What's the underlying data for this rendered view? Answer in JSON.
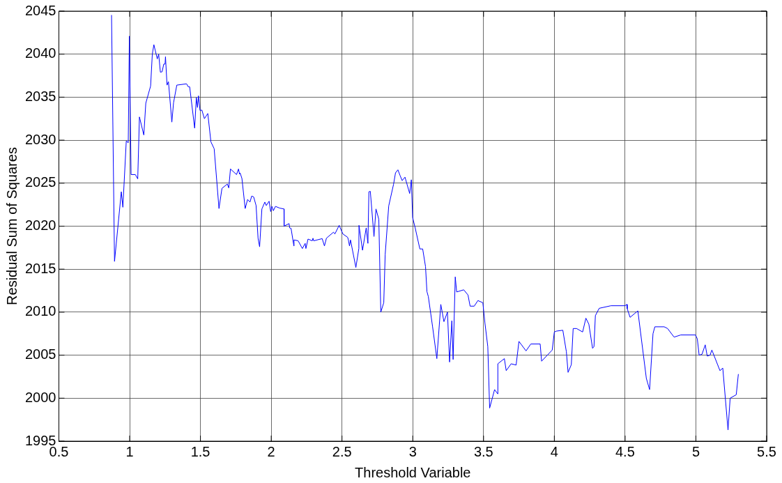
{
  "chart_data": {
    "type": "line",
    "xlabel": "Threshold Variable",
    "ylabel": "Residual Sum of Squares",
    "xlim": [
      0.5,
      5.5
    ],
    "xticks": [
      0.5,
      1,
      1.5,
      2,
      2.5,
      3,
      3.5,
      4,
      4.5,
      5,
      5.5
    ],
    "ylim": [
      1995,
      2045
    ],
    "yticks": [
      1995,
      2000,
      2005,
      2010,
      2015,
      2020,
      2025,
      2030,
      2035,
      2040,
      2045
    ],
    "grid": true,
    "legend": false,
    "marker": "none",
    "line_style": "solid",
    "series": [
      {
        "color": "#0000ff",
        "x": [
          0.872,
          0.893,
          0.941,
          0.952,
          0.976,
          0.99,
          0.998,
          1.01,
          1.04,
          1.057,
          1.069,
          1.1,
          1.114,
          1.148,
          1.16,
          1.171,
          1.195,
          1.205,
          1.217,
          1.229,
          1.241,
          1.25,
          1.253,
          1.264,
          1.274,
          1.298,
          1.31,
          1.333,
          1.402,
          1.414,
          1.424,
          1.459,
          1.471,
          1.479,
          1.486,
          1.497,
          1.51,
          1.528,
          1.552,
          1.574,
          1.597,
          1.631,
          1.652,
          1.69,
          1.7,
          1.712,
          1.755,
          1.769,
          1.776,
          1.78,
          1.793,
          1.816,
          1.833,
          1.85,
          1.862,
          1.876,
          1.893,
          1.907,
          1.918,
          1.934,
          1.955,
          1.965,
          1.985,
          1.996,
          2.005,
          2.015,
          2.03,
          2.06,
          2.09,
          2.091,
          2.126,
          2.13,
          2.14,
          2.16,
          2.161,
          2.19,
          2.22,
          2.24,
          2.245,
          2.26,
          2.29,
          2.295,
          2.3,
          2.36,
          2.376,
          2.39,
          2.44,
          2.45,
          2.48,
          2.506,
          2.54,
          2.545,
          2.553,
          2.56,
          2.598,
          2.619,
          2.62,
          2.645,
          2.671,
          2.683,
          2.69,
          2.7,
          2.726,
          2.74,
          2.76,
          2.774,
          2.795,
          2.805,
          2.83,
          2.864,
          2.878,
          2.895,
          2.91,
          2.925,
          2.945,
          2.978,
          2.99,
          2.999,
          3.017,
          3.05,
          3.07,
          3.09,
          3.1,
          3.11,
          3.14,
          3.17,
          3.198,
          3.22,
          3.245,
          3.26,
          3.276,
          3.285,
          3.3,
          3.31,
          3.36,
          3.39,
          3.405,
          3.434,
          3.46,
          3.495,
          3.51,
          3.53,
          3.543,
          3.578,
          3.6,
          3.601,
          3.647,
          3.66,
          3.695,
          3.73,
          3.75,
          3.8,
          3.834,
          3.9,
          3.91,
          3.985,
          4.0,
          4.015,
          4.06,
          4.085,
          4.097,
          4.12,
          4.133,
          4.157,
          4.2,
          4.223,
          4.244,
          4.27,
          4.28,
          4.29,
          4.317,
          4.4,
          4.5,
          4.512,
          4.515,
          4.535,
          4.59,
          4.65,
          4.673,
          4.697,
          4.71,
          4.776,
          4.8,
          4.846,
          4.893,
          4.997,
          5.01,
          5.023,
          5.043,
          5.066,
          5.08,
          5.1,
          5.113,
          5.17,
          5.19,
          5.227,
          5.242,
          5.285,
          5.3
        ],
        "values": [
          2044.55,
          2015.9,
          2024.0,
          2022.2,
          2029.9,
          2029.7,
          2042.1,
          2026.0,
          2026.0,
          2025.5,
          2032.7,
          2030.6,
          2034.3,
          2036.3,
          2040.0,
          2041.1,
          2039.45,
          2040.0,
          2037.9,
          2037.95,
          2038.85,
          2038.85,
          2039.7,
          2036.4,
          2036.8,
          2032.1,
          2034.35,
          2036.4,
          2036.55,
          2036.2,
          2036.2,
          2031.4,
          2034.95,
          2033.8,
          2035.15,
          2033.45,
          2033.5,
          2032.5,
          2033.1,
          2029.8,
          2029.0,
          2022.05,
          2024.4,
          2024.9,
          2024.45,
          2026.65,
          2026.0,
          2026.65,
          2026.05,
          2026.2,
          2025.55,
          2022.05,
          2023.1,
          2022.8,
          2023.5,
          2023.4,
          2022.4,
          2018.6,
          2017.6,
          2022.0,
          2022.8,
          2022.4,
          2022.9,
          2021.7,
          2022.3,
          2021.8,
          2022.3,
          2022.1,
          2022.0,
          2020.0,
          2020.3,
          2019.8,
          2019.75,
          2017.7,
          2018.4,
          2018.3,
          2017.4,
          2018.0,
          2017.4,
          2018.5,
          2018.3,
          2018.6,
          2018.3,
          2018.55,
          2017.7,
          2018.6,
          2019.3,
          2019.1,
          2020.1,
          2019.1,
          2018.7,
          2018.4,
          2017.7,
          2018.4,
          2015.2,
          2017.4,
          2020.1,
          2017.2,
          2019.8,
          2018.0,
          2024.0,
          2024.05,
          2018.8,
          2022.0,
          2020.8,
          2010.0,
          2011.1,
          2016.7,
          2022.35,
          2024.85,
          2026.2,
          2026.55,
          2025.9,
          2025.3,
          2025.7,
          2023.8,
          2025.4,
          2021.0,
          2019.8,
          2017.35,
          2017.35,
          2015.3,
          2012.4,
          2011.8,
          2008.3,
          2004.6,
          2010.9,
          2008.9,
          2010.0,
          2004.2,
          2009.0,
          2004.5,
          2014.1,
          2012.35,
          2012.6,
          2012.0,
          2010.7,
          2010.7,
          2011.35,
          2011.1,
          2008.7,
          2006.0,
          1998.85,
          2001.0,
          2000.5,
          2004.0,
          2004.6,
          2003.2,
          2004.0,
          2003.85,
          2006.6,
          2005.5,
          2006.3,
          2006.3,
          2004.3,
          2005.6,
          2007.7,
          2007.8,
          2007.9,
          2005.4,
          2003.0,
          2003.9,
          2008.1,
          2008.1,
          2007.7,
          2009.3,
          2008.6,
          2005.8,
          2006.0,
          2009.6,
          2010.45,
          2010.75,
          2010.75,
          2010.9,
          2010.4,
          2009.4,
          2010.15,
          2002.3,
          2001.0,
          2007.5,
          2008.3,
          2008.3,
          2008.1,
          2007.1,
          2007.35,
          2007.35,
          2006.9,
          2005.0,
          2005.1,
          2006.2,
          2004.9,
          2005.0,
          2005.6,
          2003.2,
          2003.5,
          1996.3,
          2000.0,
          2000.4,
          2002.8
        ]
      }
    ]
  }
}
